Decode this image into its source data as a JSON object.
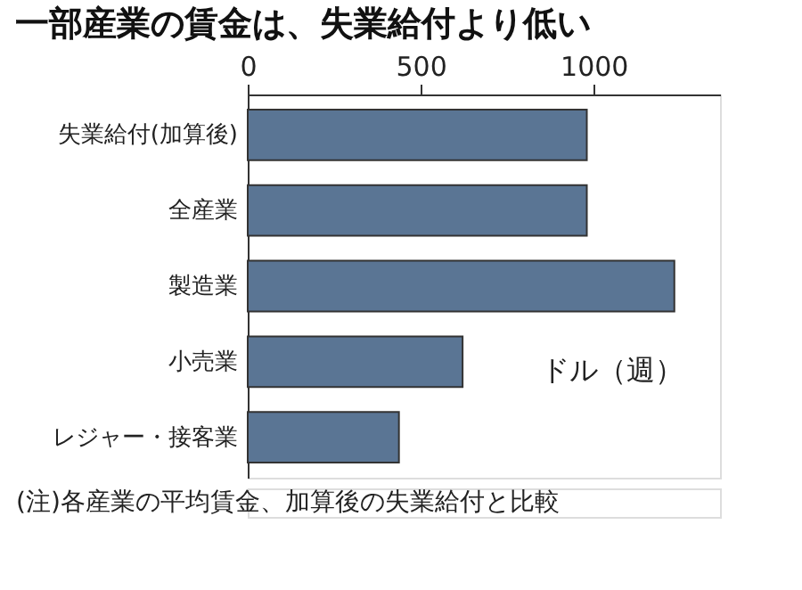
{
  "chart_data": {
    "type": "bar",
    "orientation": "horizontal",
    "title": "一部産業の賃金は、失業給付より低い",
    "xlabel": "ドル（週）",
    "categories": [
      "失業給付(加算後)",
      "全産業",
      "製造業",
      "小売業",
      "レジャー・接客業"
    ],
    "values": [
      980,
      980,
      1233,
      621,
      437
    ],
    "color": "#5a7594",
    "xlim": [
      0,
      1365
    ],
    "xticks": [
      0,
      500,
      1000
    ],
    "grid": false,
    "annotations": [
      "(注)各産業の平均賃金、加算後の失業給付と比較"
    ]
  }
}
